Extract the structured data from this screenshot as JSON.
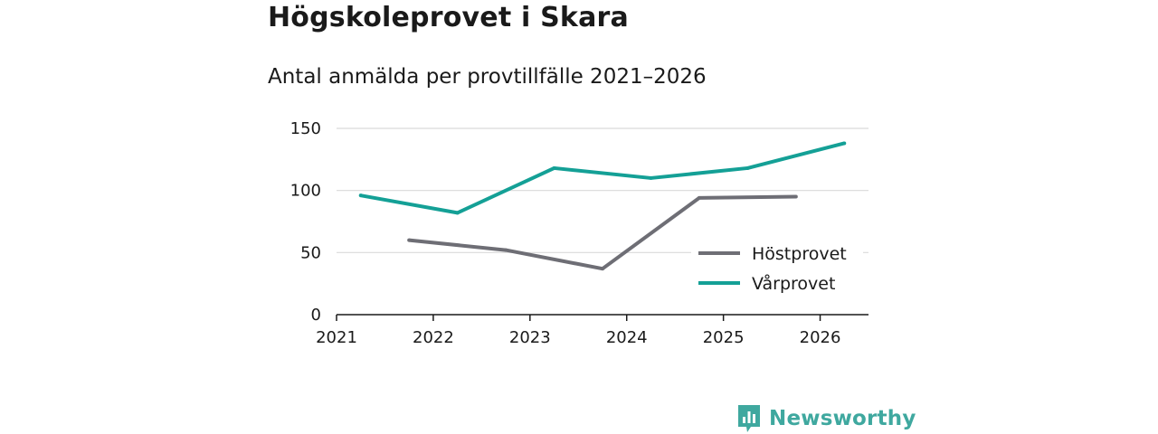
{
  "header": {
    "title": "Högskoleprovet i Skara",
    "subtitle": "Antal anmälda per provtillfälle 2021–2026"
  },
  "brand": {
    "name": "Newsworthy",
    "icon": "newsworthy-logo-icon",
    "color": "#3fa89f"
  },
  "chart_data": {
    "type": "line",
    "title": "Antal anmälda per provtillfälle 2021–2026",
    "xlabel": "",
    "ylabel": "",
    "xlim": [
      2021,
      2026.5
    ],
    "ylim": [
      0,
      150
    ],
    "y_ticks": [
      0,
      50,
      100,
      150
    ],
    "x_ticks": [
      2021,
      2022,
      2023,
      2024,
      2025,
      2026
    ],
    "x_tick_labels": [
      "2021",
      "2022",
      "2023",
      "2024",
      "2025",
      "2026"
    ],
    "grid": true,
    "legend_position": "bottom-right",
    "series": [
      {
        "name": "Höstprovet",
        "color": "#6e6e75",
        "x": [
          2021.75,
          2022.75,
          2023.75,
          2024.75,
          2025.75
        ],
        "values": [
          60,
          52,
          37,
          94,
          95
        ]
      },
      {
        "name": "Vårprovet",
        "color": "#14a096",
        "x": [
          2021.25,
          2022.25,
          2023.25,
          2024.25,
          2025.25,
          2026.25
        ],
        "values": [
          96,
          82,
          118,
          110,
          118,
          138
        ]
      }
    ]
  }
}
